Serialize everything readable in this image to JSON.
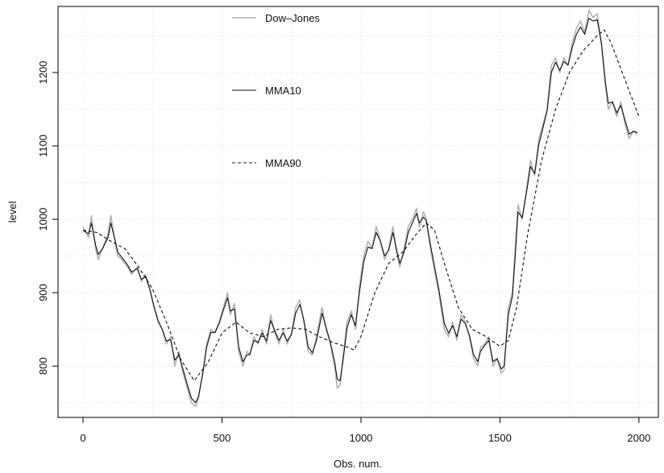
{
  "chart_data": {
    "type": "line",
    "title": "",
    "xlabel": "Obs. num.",
    "ylabel": "level",
    "xlim": [
      -90,
      2070
    ],
    "ylim": [
      730,
      1290
    ],
    "x_ticks": [
      0,
      500,
      1000,
      1500,
      2000
    ],
    "y_ticks": [
      800,
      900,
      1000,
      1100,
      1200
    ],
    "grid": true,
    "legend_placement": "top-left (inside)",
    "series": [
      {
        "name": "Dow–Jones",
        "color": "#b3b3b3",
        "style": "solid",
        "points": [
          [
            0,
            990
          ],
          [
            20,
            975
          ],
          [
            30,
            1005
          ],
          [
            45,
            960
          ],
          [
            55,
            945
          ],
          [
            70,
            960
          ],
          [
            90,
            980
          ],
          [
            100,
            1005
          ],
          [
            115,
            970
          ],
          [
            125,
            950
          ],
          [
            140,
            945
          ],
          [
            160,
            935
          ],
          [
            175,
            925
          ],
          [
            195,
            935
          ],
          [
            210,
            915
          ],
          [
            225,
            925
          ],
          [
            240,
            905
          ],
          [
            255,
            880
          ],
          [
            270,
            860
          ],
          [
            285,
            850
          ],
          [
            300,
            830
          ],
          [
            315,
            840
          ],
          [
            330,
            800
          ],
          [
            345,
            820
          ],
          [
            360,
            790
          ],
          [
            375,
            770
          ],
          [
            390,
            750
          ],
          [
            405,
            745
          ],
          [
            415,
            755
          ],
          [
            430,
            790
          ],
          [
            445,
            830
          ],
          [
            460,
            850
          ],
          [
            475,
            845
          ],
          [
            490,
            860
          ],
          [
            505,
            880
          ],
          [
            520,
            900
          ],
          [
            530,
            870
          ],
          [
            545,
            885
          ],
          [
            560,
            820
          ],
          [
            575,
            800
          ],
          [
            590,
            820
          ],
          [
            600,
            815
          ],
          [
            615,
            840
          ],
          [
            630,
            830
          ],
          [
            645,
            850
          ],
          [
            660,
            830
          ],
          [
            675,
            870
          ],
          [
            690,
            845
          ],
          [
            705,
            830
          ],
          [
            720,
            850
          ],
          [
            735,
            830
          ],
          [
            750,
            845
          ],
          [
            765,
            880
          ],
          [
            780,
            890
          ],
          [
            795,
            860
          ],
          [
            810,
            820
          ],
          [
            825,
            815
          ],
          [
            840,
            840
          ],
          [
            860,
            880
          ],
          [
            875,
            850
          ],
          [
            890,
            830
          ],
          [
            905,
            800
          ],
          [
            915,
            770
          ],
          [
            925,
            775
          ],
          [
            935,
            810
          ],
          [
            950,
            860
          ],
          [
            965,
            875
          ],
          [
            980,
            850
          ],
          [
            995,
            910
          ],
          [
            1010,
            950
          ],
          [
            1025,
            970
          ],
          [
            1040,
            960
          ],
          [
            1055,
            990
          ],
          [
            1070,
            970
          ],
          [
            1085,
            945
          ],
          [
            1100,
            960
          ],
          [
            1115,
            990
          ],
          [
            1130,
            950
          ],
          [
            1140,
            935
          ],
          [
            1155,
            960
          ],
          [
            1170,
            990
          ],
          [
            1185,
            1000
          ],
          [
            1200,
            1015
          ],
          [
            1210,
            990
          ],
          [
            1225,
            1010
          ],
          [
            1235,
            1000
          ],
          [
            1250,
            960
          ],
          [
            1265,
            930
          ],
          [
            1280,
            900
          ],
          [
            1300,
            850
          ],
          [
            1315,
            840
          ],
          [
            1330,
            860
          ],
          [
            1345,
            835
          ],
          [
            1360,
            870
          ],
          [
            1375,
            860
          ],
          [
            1390,
            840
          ],
          [
            1405,
            810
          ],
          [
            1420,
            800
          ],
          [
            1430,
            825
          ],
          [
            1445,
            830
          ],
          [
            1460,
            840
          ],
          [
            1475,
            800
          ],
          [
            1490,
            810
          ],
          [
            1505,
            790
          ],
          [
            1515,
            795
          ],
          [
            1530,
            880
          ],
          [
            1545,
            900
          ],
          [
            1555,
            960
          ],
          [
            1565,
            1020
          ],
          [
            1580,
            1000
          ],
          [
            1595,
            1040
          ],
          [
            1610,
            1080
          ],
          [
            1625,
            1060
          ],
          [
            1640,
            1110
          ],
          [
            1655,
            1130
          ],
          [
            1670,
            1150
          ],
          [
            1685,
            1210
          ],
          [
            1700,
            1220
          ],
          [
            1715,
            1200
          ],
          [
            1730,
            1220
          ],
          [
            1745,
            1210
          ],
          [
            1760,
            1240
          ],
          [
            1775,
            1260
          ],
          [
            1790,
            1270
          ],
          [
            1805,
            1255
          ],
          [
            1820,
            1285
          ],
          [
            1835,
            1275
          ],
          [
            1850,
            1280
          ],
          [
            1865,
            1240
          ],
          [
            1880,
            1180
          ],
          [
            1890,
            1150
          ],
          [
            1905,
            1160
          ],
          [
            1920,
            1140
          ],
          [
            1935,
            1160
          ],
          [
            1950,
            1130
          ],
          [
            1965,
            1110
          ],
          [
            1980,
            1120
          ],
          [
            1995,
            1115
          ]
        ]
      },
      {
        "name": "MMA10",
        "color": "#111111",
        "style": "solid",
        "points": [
          [
            0,
            985
          ],
          [
            20,
            980
          ],
          [
            30,
            995
          ],
          [
            45,
            965
          ],
          [
            55,
            952
          ],
          [
            70,
            960
          ],
          [
            90,
            975
          ],
          [
            100,
            995
          ],
          [
            115,
            972
          ],
          [
            125,
            955
          ],
          [
            140,
            948
          ],
          [
            160,
            938
          ],
          [
            175,
            928
          ],
          [
            195,
            933
          ],
          [
            210,
            918
          ],
          [
            225,
            922
          ],
          [
            240,
            905
          ],
          [
            255,
            882
          ],
          [
            270,
            862
          ],
          [
            285,
            850
          ],
          [
            300,
            834
          ],
          [
            315,
            836
          ],
          [
            330,
            808
          ],
          [
            345,
            815
          ],
          [
            360,
            795
          ],
          [
            375,
            775
          ],
          [
            390,
            756
          ],
          [
            405,
            750
          ],
          [
            415,
            758
          ],
          [
            430,
            788
          ],
          [
            445,
            826
          ],
          [
            460,
            846
          ],
          [
            475,
            846
          ],
          [
            490,
            858
          ],
          [
            505,
            876
          ],
          [
            520,
            893
          ],
          [
            530,
            875
          ],
          [
            545,
            878
          ],
          [
            560,
            826
          ],
          [
            575,
            806
          ],
          [
            590,
            815
          ],
          [
            600,
            816
          ],
          [
            615,
            835
          ],
          [
            630,
            832
          ],
          [
            645,
            845
          ],
          [
            660,
            834
          ],
          [
            675,
            862
          ],
          [
            690,
            848
          ],
          [
            705,
            835
          ],
          [
            720,
            845
          ],
          [
            735,
            834
          ],
          [
            750,
            843
          ],
          [
            765,
            872
          ],
          [
            780,
            884
          ],
          [
            795,
            862
          ],
          [
            810,
            826
          ],
          [
            825,
            818
          ],
          [
            840,
            835
          ],
          [
            860,
            872
          ],
          [
            875,
            852
          ],
          [
            890,
            832
          ],
          [
            905,
            806
          ],
          [
            915,
            782
          ],
          [
            925,
            780
          ],
          [
            935,
            806
          ],
          [
            950,
            852
          ],
          [
            965,
            870
          ],
          [
            980,
            855
          ],
          [
            995,
            902
          ],
          [
            1010,
            942
          ],
          [
            1025,
            962
          ],
          [
            1040,
            960
          ],
          [
            1055,
            982
          ],
          [
            1070,
            970
          ],
          [
            1085,
            950
          ],
          [
            1100,
            958
          ],
          [
            1115,
            982
          ],
          [
            1130,
            955
          ],
          [
            1140,
            940
          ],
          [
            1155,
            955
          ],
          [
            1170,
            982
          ],
          [
            1185,
            995
          ],
          [
            1200,
            1008
          ],
          [
            1210,
            995
          ],
          [
            1225,
            1003
          ],
          [
            1235,
            998
          ],
          [
            1250,
            965
          ],
          [
            1265,
            935
          ],
          [
            1280,
            905
          ],
          [
            1300,
            858
          ],
          [
            1315,
            845
          ],
          [
            1330,
            855
          ],
          [
            1345,
            840
          ],
          [
            1360,
            864
          ],
          [
            1375,
            858
          ],
          [
            1390,
            842
          ],
          [
            1405,
            816
          ],
          [
            1420,
            806
          ],
          [
            1430,
            820
          ],
          [
            1445,
            828
          ],
          [
            1460,
            835
          ],
          [
            1475,
            806
          ],
          [
            1490,
            810
          ],
          [
            1505,
            796
          ],
          [
            1515,
            800
          ],
          [
            1530,
            870
          ],
          [
            1545,
            895
          ],
          [
            1555,
            950
          ],
          [
            1565,
            1010
          ],
          [
            1580,
            1002
          ],
          [
            1595,
            1035
          ],
          [
            1610,
            1072
          ],
          [
            1625,
            1062
          ],
          [
            1640,
            1102
          ],
          [
            1655,
            1125
          ],
          [
            1670,
            1148
          ],
          [
            1685,
            1200
          ],
          [
            1700,
            1214
          ],
          [
            1715,
            1203
          ],
          [
            1730,
            1215
          ],
          [
            1745,
            1210
          ],
          [
            1760,
            1234
          ],
          [
            1775,
            1252
          ],
          [
            1790,
            1262
          ],
          [
            1805,
            1252
          ],
          [
            1820,
            1274
          ],
          [
            1835,
            1270
          ],
          [
            1850,
            1272
          ],
          [
            1865,
            1240
          ],
          [
            1880,
            1185
          ],
          [
            1890,
            1158
          ],
          [
            1905,
            1160
          ],
          [
            1920,
            1145
          ],
          [
            1935,
            1155
          ],
          [
            1950,
            1135
          ],
          [
            1965,
            1116
          ],
          [
            1980,
            1120
          ],
          [
            1995,
            1118
          ]
        ]
      },
      {
        "name": "MMA90",
        "color": "#111111",
        "style": "dashed",
        "points": [
          [
            0,
            985
          ],
          [
            50,
            982
          ],
          [
            100,
            970
          ],
          [
            150,
            960
          ],
          [
            200,
            935
          ],
          [
            250,
            905
          ],
          [
            300,
            860
          ],
          [
            350,
            810
          ],
          [
            400,
            780
          ],
          [
            450,
            805
          ],
          [
            500,
            845
          ],
          [
            550,
            860
          ],
          [
            600,
            845
          ],
          [
            650,
            840
          ],
          [
            700,
            850
          ],
          [
            750,
            852
          ],
          [
            800,
            850
          ],
          [
            850,
            840
          ],
          [
            900,
            832
          ],
          [
            950,
            826
          ],
          [
            975,
            822
          ],
          [
            1000,
            840
          ],
          [
            1050,
            900
          ],
          [
            1100,
            940
          ],
          [
            1150,
            955
          ],
          [
            1200,
            980
          ],
          [
            1235,
            995
          ],
          [
            1265,
            985
          ],
          [
            1300,
            940
          ],
          [
            1350,
            880
          ],
          [
            1400,
            850
          ],
          [
            1450,
            840
          ],
          [
            1500,
            827
          ],
          [
            1530,
            835
          ],
          [
            1560,
            880
          ],
          [
            1600,
            980
          ],
          [
            1650,
            1080
          ],
          [
            1700,
            1150
          ],
          [
            1750,
            1200
          ],
          [
            1800,
            1230
          ],
          [
            1850,
            1250
          ],
          [
            1875,
            1258
          ],
          [
            1900,
            1240
          ],
          [
            1950,
            1190
          ],
          [
            2000,
            1140
          ]
        ]
      }
    ]
  }
}
